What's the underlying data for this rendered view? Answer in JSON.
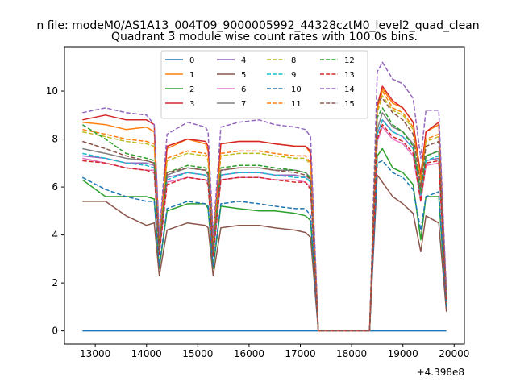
{
  "chart_data": {
    "type": "line",
    "suptitle": "n file: modeM0/AS1A13_004T09_9000005992_44328cztM0_level2_quad_clean",
    "title": "Quadrant 3 module wise count rates with 100.0s bins.",
    "xlabel": "",
    "ylabel": "",
    "x_offset_label": "+4.398e8",
    "xlim": [
      12400,
      20200
    ],
    "ylim": [
      -0.55,
      11.85
    ],
    "x_ticks": [
      13000,
      14000,
      15000,
      16000,
      17000,
      18000,
      19000,
      20000
    ],
    "y_ticks": [
      0,
      2,
      4,
      6,
      8,
      10
    ],
    "x_tick_labels": [
      "13000",
      "14000",
      "15000",
      "16000",
      "17000",
      "18000",
      "19000",
      "20000"
    ],
    "y_tick_labels": [
      "0",
      "2",
      "4",
      "6",
      "8",
      "10"
    ],
    "grid": false,
    "legend": {
      "placement": "upper-center",
      "columns": 4
    },
    "profile_x": [
      12750,
      13200,
      13600,
      14000,
      14150,
      14250,
      14400,
      14800,
      15150,
      15200,
      15300,
      15450,
      15800,
      16200,
      16500,
      16900,
      17100,
      17200,
      17350,
      18350,
      18500,
      18600,
      18800,
      19000,
      19200,
      19350,
      19450,
      19700,
      19850
    ],
    "series": [
      {
        "name": "0",
        "color": "#1f77b4",
        "dash": "solid",
        "profile": [
          0,
          0,
          0,
          0,
          0,
          0,
          0,
          0,
          0,
          0,
          0,
          0,
          0,
          0,
          0,
          0,
          0,
          0,
          0,
          0,
          0,
          0,
          0,
          0,
          0,
          0,
          0,
          0,
          0
        ]
      },
      {
        "name": "1",
        "color": "#ff7f0e",
        "dash": "solid",
        "profile": [
          8.7,
          8.6,
          8.4,
          8.5,
          8.3,
          3.7,
          7.6,
          8.0,
          7.8,
          7.5,
          3.8,
          7.8,
          7.9,
          7.9,
          7.8,
          7.7,
          7.7,
          7.4,
          0,
          0,
          9.3,
          10.1,
          9.5,
          9.3,
          8.7,
          6.4,
          8.3,
          8.6,
          1.4
        ]
      },
      {
        "name": "2",
        "color": "#2ca02c",
        "dash": "solid",
        "profile": [
          6.3,
          5.6,
          5.6,
          5.6,
          5.5,
          2.6,
          5.0,
          5.3,
          5.3,
          5.1,
          2.6,
          5.2,
          5.1,
          5.0,
          5.0,
          4.9,
          4.8,
          4.6,
          0,
          0,
          7.3,
          7.6,
          6.8,
          6.6,
          6.1,
          3.8,
          5.6,
          5.6,
          0.9
        ]
      },
      {
        "name": "3",
        "color": "#d62728",
        "dash": "solid",
        "profile": [
          8.8,
          9.0,
          8.8,
          8.8,
          8.6,
          3.7,
          7.7,
          8.0,
          7.9,
          7.7,
          3.7,
          7.8,
          7.9,
          7.9,
          7.8,
          7.7,
          7.7,
          7.5,
          0,
          0,
          9.4,
          10.2,
          9.6,
          9.3,
          8.7,
          6.5,
          8.3,
          8.7,
          1.4
        ]
      },
      {
        "name": "4",
        "color": "#9467bd",
        "dash": "solid",
        "profile": [
          7.3,
          7.2,
          7.0,
          7.0,
          6.9,
          3.3,
          6.4,
          6.6,
          6.5,
          6.4,
          3.2,
          6.5,
          6.6,
          6.6,
          6.5,
          6.5,
          6.4,
          6.2,
          0,
          0,
          8.2,
          8.8,
          8.3,
          8.1,
          7.6,
          5.6,
          7.1,
          7.2,
          1.2
        ]
      },
      {
        "name": "5",
        "color": "#8c564b",
        "dash": "solid",
        "profile": [
          5.4,
          5.4,
          4.8,
          4.4,
          4.5,
          2.3,
          4.2,
          4.5,
          4.4,
          4.3,
          2.3,
          4.3,
          4.4,
          4.4,
          4.3,
          4.2,
          4.1,
          3.9,
          0,
          0,
          6.5,
          6.2,
          5.6,
          5.3,
          4.9,
          3.3,
          4.8,
          4.5,
          0.8
        ]
      },
      {
        "name": "6",
        "color": "#e377c2",
        "dash": "solid",
        "profile": [
          7.2,
          7.0,
          6.8,
          6.7,
          6.7,
          3.2,
          6.2,
          6.4,
          6.3,
          6.2,
          3.1,
          6.3,
          6.4,
          6.4,
          6.3,
          6.3,
          6.2,
          6.0,
          0,
          0,
          7.9,
          8.5,
          8.0,
          7.8,
          7.3,
          5.4,
          6.9,
          7.0,
          1.2
        ]
      },
      {
        "name": "7",
        "color": "#7f7f7f",
        "dash": "solid",
        "profile": [
          7.6,
          7.4,
          7.2,
          7.1,
          7.0,
          3.4,
          6.5,
          6.8,
          6.7,
          6.5,
          3.3,
          6.7,
          6.8,
          6.8,
          6.7,
          6.7,
          6.6,
          6.4,
          0,
          0,
          8.4,
          9.1,
          8.5,
          8.3,
          7.8,
          5.7,
          7.3,
          7.5,
          1.3
        ]
      },
      {
        "name": "8",
        "color": "#bcbd22",
        "dash": "dashed",
        "profile": [
          8.3,
          8.1,
          7.9,
          7.8,
          7.7,
          3.6,
          7.1,
          7.4,
          7.3,
          7.1,
          3.6,
          7.3,
          7.4,
          7.4,
          7.3,
          7.2,
          7.2,
          6.9,
          0,
          0,
          9.1,
          9.8,
          9.2,
          9.0,
          8.4,
          6.2,
          7.9,
          8.1,
          1.4
        ]
      },
      {
        "name": "9",
        "color": "#17becf",
        "dash": "dashed",
        "profile": [
          7.4,
          7.2,
          7.0,
          6.9,
          6.8,
          3.3,
          6.3,
          6.6,
          6.5,
          6.3,
          3.2,
          6.5,
          6.6,
          6.6,
          6.5,
          6.4,
          6.4,
          6.2,
          0,
          0,
          8.2,
          8.8,
          8.3,
          8.1,
          7.6,
          5.5,
          7.1,
          7.3,
          1.2
        ]
      },
      {
        "name": "10",
        "color": "#1f77b4",
        "dash": "dashed",
        "profile": [
          6.4,
          5.9,
          5.6,
          5.4,
          5.4,
          2.7,
          5.1,
          5.4,
          5.3,
          5.2,
          2.7,
          5.3,
          5.4,
          5.3,
          5.2,
          5.1,
          5.1,
          4.8,
          0,
          0,
          7.0,
          7.1,
          6.6,
          6.4,
          5.9,
          4.2,
          5.6,
          5.8,
          1.0
        ]
      },
      {
        "name": "11",
        "color": "#ff7f0e",
        "dash": "dashed",
        "profile": [
          8.4,
          8.2,
          8.0,
          7.9,
          7.8,
          3.6,
          7.2,
          7.5,
          7.4,
          7.2,
          3.6,
          7.4,
          7.5,
          7.5,
          7.4,
          7.3,
          7.3,
          7.0,
          0,
          0,
          9.2,
          10.0,
          9.3,
          9.1,
          8.5,
          6.3,
          8.0,
          8.2,
          1.4
        ]
      },
      {
        "name": "12",
        "color": "#2ca02c",
        "dash": "dashed",
        "profile": [
          8.6,
          8.0,
          7.4,
          7.2,
          7.1,
          3.5,
          6.6,
          6.9,
          6.8,
          6.6,
          3.4,
          6.8,
          6.9,
          6.9,
          6.8,
          6.7,
          6.6,
          6.3,
          0,
          0,
          8.9,
          9.3,
          8.6,
          8.3,
          7.7,
          5.8,
          7.3,
          7.5,
          1.3
        ]
      },
      {
        "name": "13",
        "color": "#d62728",
        "dash": "dashed",
        "profile": [
          7.1,
          7.0,
          6.8,
          6.7,
          6.6,
          3.2,
          6.1,
          6.4,
          6.3,
          6.1,
          3.1,
          6.3,
          6.4,
          6.4,
          6.3,
          6.2,
          6.2,
          5.9,
          0,
          0,
          8.0,
          8.6,
          8.1,
          7.9,
          7.4,
          5.4,
          7.0,
          7.1,
          1.2
        ]
      },
      {
        "name": "14",
        "color": "#9467bd",
        "dash": "dashed",
        "profile": [
          9.1,
          9.3,
          9.1,
          9.0,
          8.6,
          4.0,
          8.2,
          8.7,
          8.5,
          8.3,
          4.0,
          8.5,
          8.7,
          8.8,
          8.6,
          8.5,
          8.4,
          8.1,
          0,
          0,
          10.8,
          11.2,
          10.5,
          10.3,
          9.7,
          7.2,
          9.2,
          9.2,
          1.6
        ]
      },
      {
        "name": "15",
        "color": "#8c564b",
        "dash": "dashed",
        "profile": [
          7.9,
          7.6,
          7.3,
          7.1,
          7.0,
          3.4,
          6.6,
          6.8,
          6.7,
          6.5,
          3.3,
          6.7,
          6.8,
          6.8,
          6.7,
          6.6,
          6.5,
          6.3,
          0,
          0,
          9.6,
          9.7,
          9.1,
          8.8,
          8.2,
          6.0,
          7.7,
          7.9,
          1.3
        ]
      }
    ]
  }
}
